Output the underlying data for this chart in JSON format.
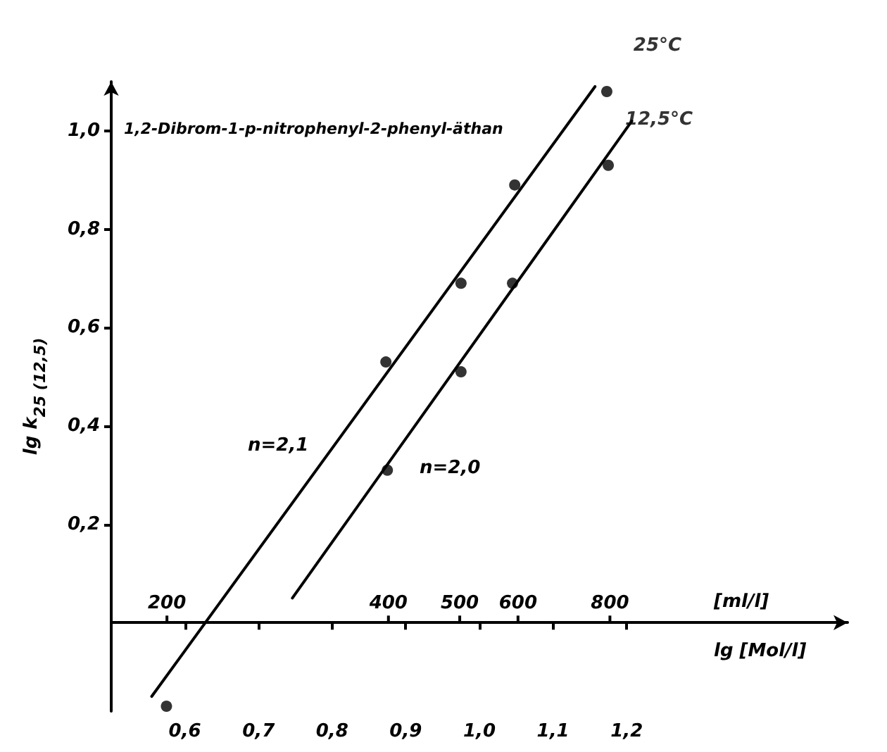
{
  "chart_data": {
    "type": "scatter",
    "xlabel": "lg [Mol/l]",
    "x2label": "[ml/l]",
    "ylabel": "lg k$_{25 (12,5)}$",
    "xlim": [
      0.5,
      1.5
    ],
    "xticks": [
      {
        "value": 0.6,
        "label": "0,6"
      },
      {
        "value": 0.7,
        "label": "0,7"
      },
      {
        "value": 0.8,
        "label": "0,8"
      },
      {
        "value": 0.9,
        "label": "0,9"
      },
      {
        "value": 1.0,
        "label": "1,0"
      },
      {
        "value": 1.1,
        "label": "1,1"
      },
      {
        "value": 1.2,
        "label": "1,2"
      }
    ],
    "x2lim": [
      168,
      1683
    ],
    "x2ticks": [
      200,
      400,
      500,
      600,
      800
    ],
    "log": "x2",
    "ylim": [
      -0.18,
      1.1
    ],
    "yticks": [
      {
        "value": 0.2,
        "label": "0,2"
      },
      {
        "value": 0.4,
        "label": "0,4"
      },
      {
        "value": 0.6,
        "label": "0,6"
      },
      {
        "value": 0.8,
        "label": "0,8"
      },
      {
        "value": 1.0,
        "label": "1,0"
      }
    ],
    "grid": false,
    "marker": "circle",
    "series": [
      {
        "type": "scatter",
        "name": "25°C",
        "color": "#000000",
        "x": [
          0.575,
          0.873,
          0.975,
          1.048,
          1.173
        ],
        "values": [
          -0.17,
          0.53,
          0.69,
          0.89,
          1.08
        ]
      },
      {
        "type": "scatter",
        "name": "12,5°C",
        "color": "#000000",
        "x": [
          0.875,
          0.975,
          1.045,
          1.175
        ],
        "values": [
          0.31,
          0.51,
          0.69,
          0.93
        ]
      },
      {
        "type": "line",
        "marker": "none",
        "color": "#000000",
        "line_style": "solid",
        "x": [
          0.555,
          1.157
        ],
        "values": [
          -0.15,
          1.09
        ]
      },
      {
        "type": "line",
        "marker": "none",
        "color": "#000000",
        "line_style": "solid",
        "x": [
          0.746,
          1.207
        ],
        "values": [
          0.05,
          1.02
        ]
      }
    ],
    "annotations": [
      "1,2-Dibrom-1-p-nitrophenyl-2-phenyl-äthan",
      "n=2,1",
      "n=2,0"
    ]
  }
}
